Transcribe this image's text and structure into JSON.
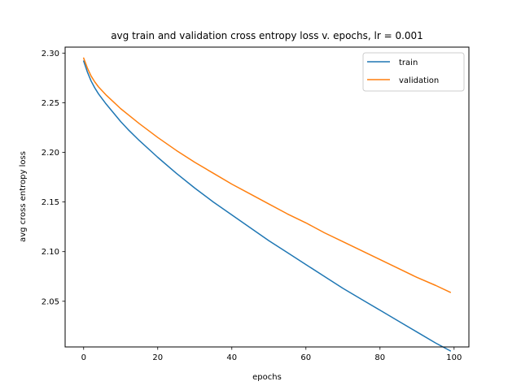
{
  "chart_data": {
    "type": "line",
    "title": "avg train and validation cross entropy loss v. epochs, lr = 0.001",
    "xlabel": "epochs",
    "ylabel": "avg cross entropy loss",
    "xlim": [
      -5,
      104
    ],
    "ylim": [
      2.004,
      2.306
    ],
    "xticks": [
      0,
      20,
      40,
      60,
      80,
      100
    ],
    "yticks": [
      2.05,
      2.1,
      2.15,
      2.2,
      2.25,
      2.3
    ],
    "grid": false,
    "legend_position": "top-right",
    "x": [
      0,
      1,
      2,
      3,
      4,
      5,
      6,
      8,
      10,
      12,
      15,
      20,
      25,
      30,
      35,
      40,
      45,
      50,
      55,
      60,
      65,
      70,
      75,
      80,
      85,
      90,
      95,
      99
    ],
    "series": [
      {
        "name": "train",
        "color": "#1f77b4",
        "values": [
          2.292,
          2.281,
          2.272,
          2.265,
          2.259,
          2.254,
          2.249,
          2.24,
          2.231,
          2.223,
          2.212,
          2.195,
          2.179,
          2.164,
          2.15,
          2.137,
          2.124,
          2.111,
          2.099,
          2.087,
          2.075,
          2.063,
          2.052,
          2.041,
          2.03,
          2.019,
          2.008,
          2.0
        ]
      },
      {
        "name": "validation",
        "color": "#ff7f0e",
        "values": [
          2.295,
          2.285,
          2.277,
          2.271,
          2.266,
          2.262,
          2.258,
          2.251,
          2.244,
          2.238,
          2.229,
          2.215,
          2.202,
          2.19,
          2.179,
          2.168,
          2.158,
          2.148,
          2.138,
          2.129,
          2.119,
          2.11,
          2.101,
          2.092,
          2.083,
          2.074,
          2.066,
          2.059
        ]
      }
    ]
  }
}
